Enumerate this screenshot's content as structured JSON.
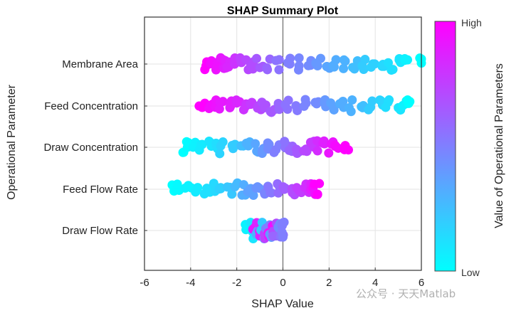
{
  "chart_data": {
    "type": "scatter",
    "title": "SHAP Summary Plot",
    "xlabel": "SHAP Value",
    "ylabel": "Operational Parameter",
    "xlim": [
      -6,
      6
    ],
    "xticks": [
      "-6",
      "-4",
      "-2",
      "0",
      "2",
      "4",
      "6"
    ],
    "grid": true,
    "colormap": {
      "low": "#00ffff",
      "high": "#ff00ff"
    },
    "colorbar": {
      "label": "Value of Operational Parameters",
      "high": "High",
      "low": "Low"
    },
    "features": [
      {
        "name": "Membrane Area",
        "points": [
          [
            -3.3,
            1
          ],
          [
            -3.1,
            0.95
          ],
          [
            -2.9,
            0.93
          ],
          [
            -2.7,
            0.9
          ],
          [
            -2.5,
            0.88
          ],
          [
            -2.3,
            0.85
          ],
          [
            -2.1,
            0.8
          ],
          [
            -1.8,
            0.75
          ],
          [
            -1.5,
            0.72
          ],
          [
            -1.3,
            0.7
          ],
          [
            -1.0,
            0.65
          ],
          [
            -0.7,
            0.6
          ],
          [
            -0.3,
            0.55
          ],
          [
            0.3,
            0.5
          ],
          [
            0.7,
            0.47
          ],
          [
            1.1,
            0.45
          ],
          [
            1.5,
            0.4
          ],
          [
            1.9,
            0.35
          ],
          [
            2.3,
            0.32
          ],
          [
            2.7,
            0.3
          ],
          [
            3.1,
            0.25
          ],
          [
            3.5,
            0.2
          ],
          [
            3.9,
            0.18
          ],
          [
            4.3,
            0.15
          ],
          [
            4.7,
            0.12
          ],
          [
            5.1,
            0.1
          ],
          [
            5.4,
            0.05
          ],
          [
            6.0,
            0
          ]
        ]
      },
      {
        "name": "Feed Concentration",
        "points": [
          [
            -3.5,
            1
          ],
          [
            -3.2,
            0.95
          ],
          [
            -2.9,
            0.93
          ],
          [
            -2.6,
            0.9
          ],
          [
            -2.3,
            0.88
          ],
          [
            -2.0,
            0.85
          ],
          [
            -1.7,
            0.8
          ],
          [
            -1.4,
            0.77
          ],
          [
            -1.1,
            0.72
          ],
          [
            -0.8,
            0.68
          ],
          [
            -0.5,
            0.65
          ],
          [
            -0.2,
            0.6
          ],
          [
            0.2,
            0.55
          ],
          [
            0.6,
            0.52
          ],
          [
            1.0,
            0.48
          ],
          [
            1.4,
            0.45
          ],
          [
            1.8,
            0.4
          ],
          [
            2.2,
            0.36
          ],
          [
            2.6,
            0.32
          ],
          [
            3.0,
            0.3
          ],
          [
            3.4,
            0.25
          ],
          [
            3.8,
            0.2
          ],
          [
            4.2,
            0.17
          ],
          [
            4.6,
            0.13
          ],
          [
            5.0,
            0.1
          ],
          [
            5.3,
            0.05
          ],
          [
            5.5,
            0
          ]
        ]
      },
      {
        "name": "Draw Concentration",
        "points": [
          [
            -4.3,
            0
          ],
          [
            -4.1,
            0.02
          ],
          [
            -3.8,
            0.05
          ],
          [
            -3.5,
            0.08
          ],
          [
            -3.2,
            0.1
          ],
          [
            -2.9,
            0.13
          ],
          [
            -2.6,
            0.17
          ],
          [
            -2.2,
            0.2
          ],
          [
            -1.8,
            0.25
          ],
          [
            -1.5,
            0.3
          ],
          [
            -1.2,
            0.35
          ],
          [
            -0.9,
            0.4
          ],
          [
            -0.6,
            0.45
          ],
          [
            -0.3,
            0.5
          ],
          [
            0.1,
            0.55
          ],
          [
            0.4,
            0.6
          ],
          [
            0.7,
            0.65
          ],
          [
            1.0,
            0.72
          ],
          [
            1.2,
            0.78
          ],
          [
            1.5,
            0.83
          ],
          [
            1.8,
            0.88
          ],
          [
            2.1,
            0.92
          ],
          [
            2.4,
            0.96
          ],
          [
            2.7,
            1
          ]
        ]
      },
      {
        "name": "Feed Flow Rate",
        "points": [
          [
            -4.8,
            0
          ],
          [
            -4.5,
            0.02
          ],
          [
            -4.1,
            0.05
          ],
          [
            -3.7,
            0.08
          ],
          [
            -3.3,
            0.12
          ],
          [
            -3.0,
            0.15
          ],
          [
            -2.7,
            0.18
          ],
          [
            -2.3,
            0.22
          ],
          [
            -2.0,
            0.27
          ],
          [
            -1.7,
            0.32
          ],
          [
            -1.4,
            0.37
          ],
          [
            -1.1,
            0.42
          ],
          [
            -0.8,
            0.48
          ],
          [
            -0.5,
            0.53
          ],
          [
            -0.2,
            0.58
          ],
          [
            0.1,
            0.63
          ],
          [
            0.4,
            0.7
          ],
          [
            0.7,
            0.76
          ],
          [
            1.0,
            0.82
          ],
          [
            1.2,
            0.88
          ],
          [
            1.4,
            0.94
          ],
          [
            1.5,
            1
          ]
        ]
      },
      {
        "name": "Draw Flow Rate",
        "points": [
          [
            -1.6,
            0.05
          ],
          [
            -1.4,
            0.1
          ],
          [
            -1.2,
            0.9
          ],
          [
            -1.1,
            0.3
          ],
          [
            -1.0,
            0.85
          ],
          [
            -0.9,
            0.2
          ],
          [
            -0.8,
            0.75
          ],
          [
            -0.7,
            0.5
          ],
          [
            -0.6,
            0.95
          ],
          [
            -0.5,
            0.4
          ],
          [
            -0.4,
            0.7
          ],
          [
            -0.3,
            0.6
          ],
          [
            -0.2,
            0.45
          ],
          [
            -0.1,
            0.55
          ],
          [
            0.0,
            0.5
          ],
          [
            0.05,
            0.5
          ]
        ]
      }
    ]
  },
  "watermark": "公众号 · 天天Matlab"
}
